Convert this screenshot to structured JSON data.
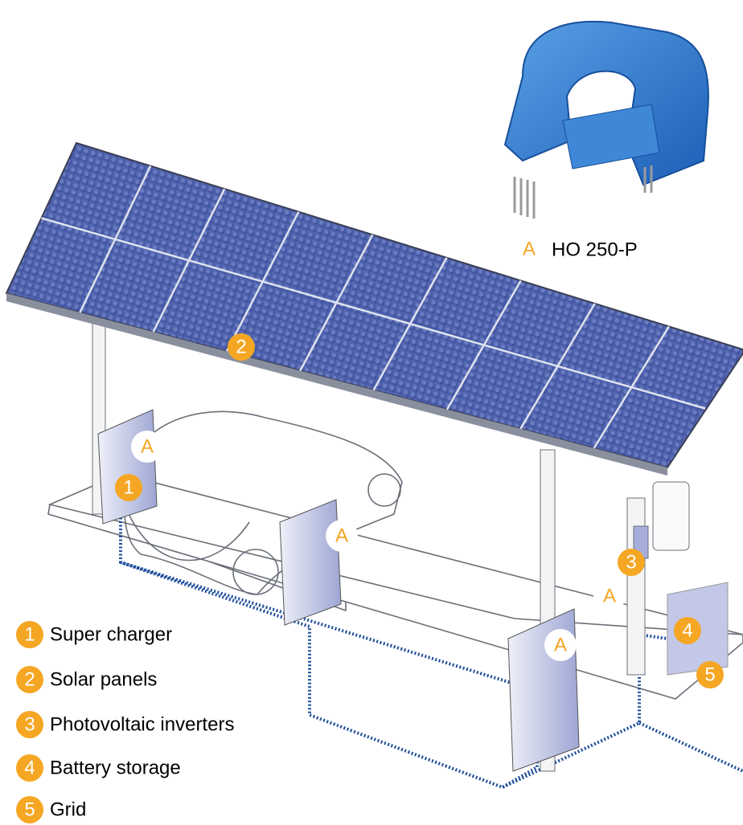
{
  "product": {
    "marker": "A",
    "name": "HO 250-P"
  },
  "markers": [
    {
      "label": "A"
    },
    {
      "label": "1"
    },
    {
      "label": "2"
    },
    {
      "label": "A"
    },
    {
      "label": "3"
    },
    {
      "label": "A"
    },
    {
      "label": "A"
    },
    {
      "label": "4"
    },
    {
      "label": "5"
    }
  ],
  "legend": [
    {
      "number": "1",
      "label": "Super charger"
    },
    {
      "number": "2",
      "label": "Solar panels"
    },
    {
      "number": "3",
      "label": "Photovoltaic inverters"
    },
    {
      "number": "4",
      "label": "Battery storage"
    },
    {
      "number": "5",
      "label": "Grid"
    }
  ]
}
